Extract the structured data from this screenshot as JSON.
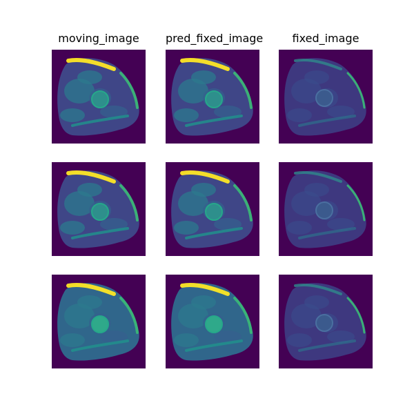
{
  "columns": [
    "moving_image",
    "pred_fixed_image",
    "fixed_image"
  ],
  "rows": 3,
  "colormap": "viridis",
  "colors": {
    "background": "#440154",
    "low": "#46327e",
    "mid": "#365c8d",
    "teal": "#21918c",
    "green": "#3bbb75",
    "yellow": "#fde725"
  },
  "panels": [
    [
      {
        "name": "moving-image-row-1",
        "variant": "bright",
        "rotation": 0
      },
      {
        "name": "pred-fixed-image-row-1",
        "variant": "bright",
        "rotation": 0
      },
      {
        "name": "fixed-image-row-1",
        "variant": "dim",
        "rotation": 0
      }
    ],
    [
      {
        "name": "moving-image-row-2",
        "variant": "bright",
        "rotation": 0
      },
      {
        "name": "pred-fixed-image-row-2",
        "variant": "bright",
        "rotation": 0
      },
      {
        "name": "fixed-image-row-2",
        "variant": "dim",
        "rotation": 0
      }
    ],
    [
      {
        "name": "moving-image-row-3",
        "variant": "bright-teal",
        "rotation": 0
      },
      {
        "name": "pred-fixed-image-row-3",
        "variant": "bright-teal",
        "rotation": 0
      },
      {
        "name": "fixed-image-row-3",
        "variant": "dim",
        "rotation": 0
      }
    ]
  ]
}
